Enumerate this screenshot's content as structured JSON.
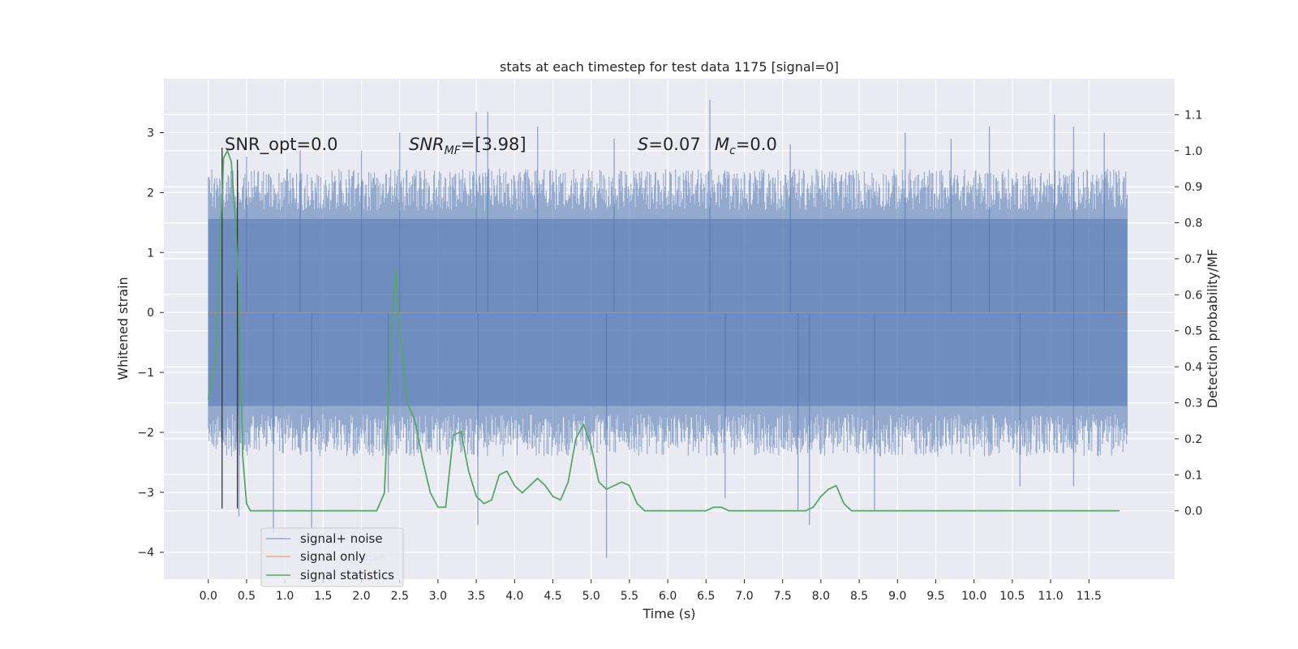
{
  "chart_data": {
    "type": "line",
    "title": "stats at each timestep for test data 1175 [signal=0]",
    "xlabel": "Time (s)",
    "ylabel": "Whitened strain",
    "ylabel_right": "Detection probability/MF",
    "xlim": [
      -0.58,
      12.62
    ],
    "ylim": [
      -4.45,
      3.9
    ],
    "ylim_right": [
      -0.19,
      1.2
    ],
    "x_ticks": [
      "0.0",
      "0.5",
      "1.0",
      "1.5",
      "2.0",
      "2.5",
      "3.0",
      "3.5",
      "4.0",
      "4.5",
      "5.0",
      "5.5",
      "6.0",
      "6.5",
      "7.0",
      "7.5",
      "8.0",
      "8.5",
      "9.0",
      "9.5",
      "10.0",
      "10.5",
      "11.0",
      "11.5"
    ],
    "y_ticks": [
      "3",
      "2",
      "1",
      "0",
      "−1",
      "−2",
      "−3",
      "−4"
    ],
    "y_ticks_right": [
      "1.1",
      "1.0",
      "0.9",
      "0.8",
      "0.7",
      "0.6",
      "0.5",
      "0.4",
      "0.3",
      "0.2",
      "0.1",
      "0.0"
    ],
    "grid": true,
    "legend_placement": "lower-left",
    "annotations": {
      "snr_opt": "SNR_opt=0.0",
      "snr_mf_main": "SNR",
      "snr_mf_sub": "MF",
      "snr_mf_value": "=[3.98]",
      "s_symbol": "S",
      "s_value": "=0.07",
      "mc_symbol": "M",
      "mc_sub": "c",
      "mc_value": "=0.0"
    },
    "legend_ghost_text": "noise",
    "series": [
      {
        "name": "signal+ noise",
        "axis": "left",
        "color": "#4c72b0",
        "style": "noise-band",
        "x_range": [
          0.0,
          12.0
        ],
        "envelope_upper": 2.0,
        "envelope_lower": -2.0,
        "peaks_up": [
          [
            0.5,
            2.6
          ],
          [
            1.2,
            2.7
          ],
          [
            2.0,
            2.7
          ],
          [
            2.5,
            3.0
          ],
          [
            3.5,
            3.35
          ],
          [
            3.65,
            3.35
          ],
          [
            4.3,
            3.1
          ],
          [
            5.3,
            2.9
          ],
          [
            6.55,
            3.55
          ],
          [
            7.6,
            2.8
          ],
          [
            9.1,
            3.0
          ],
          [
            9.7,
            2.9
          ],
          [
            10.2,
            3.1
          ],
          [
            11.05,
            3.3
          ],
          [
            11.3,
            3.1
          ],
          [
            11.7,
            3.0
          ]
        ],
        "peaks_down": [
          [
            0.4,
            -3.4
          ],
          [
            0.85,
            -3.7
          ],
          [
            1.35,
            -3.6
          ],
          [
            2.35,
            -3.0
          ],
          [
            3.52,
            -3.55
          ],
          [
            5.2,
            -4.1
          ],
          [
            6.75,
            -3.1
          ],
          [
            7.7,
            -3.3
          ],
          [
            7.85,
            -3.55
          ],
          [
            8.7,
            -3.3
          ],
          [
            10.6,
            -2.9
          ],
          [
            11.3,
            -2.9
          ]
        ]
      },
      {
        "name": "signal only",
        "axis": "left",
        "color": "#dd8452",
        "x": [
          0.0,
          12.0
        ],
        "y": [
          0.0,
          0.0
        ]
      },
      {
        "name": "signal statistics",
        "axis": "right",
        "color": "#55a868",
        "x": [
          0.0,
          0.1,
          0.15,
          0.2,
          0.25,
          0.3,
          0.35,
          0.4,
          0.45,
          0.5,
          0.55,
          0.6,
          1.0,
          2.0,
          2.2,
          2.3,
          2.4,
          2.45,
          2.5,
          2.6,
          2.7,
          2.8,
          2.9,
          3.0,
          3.1,
          3.2,
          3.3,
          3.4,
          3.5,
          3.6,
          3.7,
          3.8,
          3.9,
          4.0,
          4.1,
          4.2,
          4.3,
          4.4,
          4.5,
          4.6,
          4.7,
          4.8,
          4.9,
          5.0,
          5.1,
          5.2,
          5.3,
          5.4,
          5.5,
          5.6,
          5.7,
          6.0,
          6.5,
          6.6,
          6.7,
          6.8,
          7.0,
          7.5,
          7.8,
          7.9,
          8.0,
          8.1,
          8.2,
          8.3,
          8.4,
          9.0,
          10.0,
          11.0,
          11.9
        ],
        "y": [
          0.31,
          0.42,
          0.73,
          0.98,
          1.0,
          0.97,
          0.82,
          0.6,
          0.15,
          0.02,
          0.0,
          0.0,
          0.0,
          0.0,
          0.0,
          0.05,
          0.54,
          0.67,
          0.5,
          0.3,
          0.25,
          0.14,
          0.05,
          0.01,
          0.01,
          0.21,
          0.22,
          0.11,
          0.04,
          0.02,
          0.03,
          0.1,
          0.11,
          0.07,
          0.05,
          0.07,
          0.09,
          0.07,
          0.04,
          0.03,
          0.08,
          0.2,
          0.24,
          0.18,
          0.08,
          0.06,
          0.07,
          0.08,
          0.07,
          0.02,
          0.0,
          0.0,
          0.0,
          0.01,
          0.01,
          0.0,
          0.0,
          0.0,
          0.0,
          0.01,
          0.04,
          0.06,
          0.07,
          0.02,
          0.0,
          0.0,
          0.0,
          0.0,
          0.0
        ]
      }
    ],
    "vertical_markers": [
      {
        "x": 0.18,
        "y_bottom": -3.27,
        "y_top": 2.75,
        "color": "#333333"
      },
      {
        "x": 0.38,
        "y_bottom": -3.27,
        "y_top": 2.55,
        "color": "#333333"
      }
    ]
  }
}
